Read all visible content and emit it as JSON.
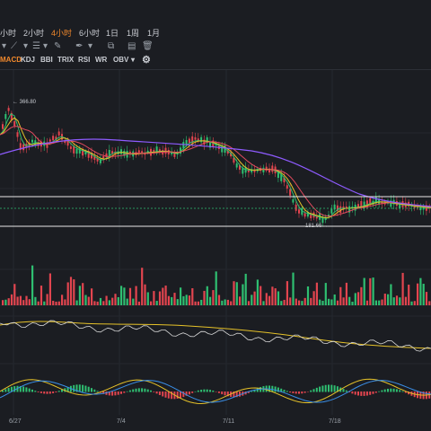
{
  "timeframes": [
    "小时",
    "2小时",
    "4小时",
    "6小时",
    "1日",
    "1周",
    "1月"
  ],
  "active_timeframe": "4小时",
  "tool_icons": [
    "chevron-down-icon",
    "line-tool-icon",
    "chevron-down-icon",
    "menu-icon",
    "chevron-down-icon",
    "draw-tool-icon",
    "chevron-down-icon",
    "screenshot-icon",
    "layout-icon",
    "trash-icon"
  ],
  "indicators": [
    "MACD",
    "KDJ",
    "BBI",
    "TRIX",
    "RSI",
    "WR",
    "OBV"
  ],
  "active_indicator": "MACD",
  "obv_dropdown": "▾",
  "price_labels": {
    "high": "← 366.80",
    "low": "181.66 →"
  },
  "date_labels": [
    "6/27",
    "7/4",
    "7/11",
    "7/18"
  ],
  "colors": {
    "up": "#2fbf71",
    "down": "#e2454f",
    "accent": "#f0882c",
    "ma_yellow": "#e6c229",
    "ma_purple": "#8e5bff",
    "ma_red": "#e24a5e"
  }
}
